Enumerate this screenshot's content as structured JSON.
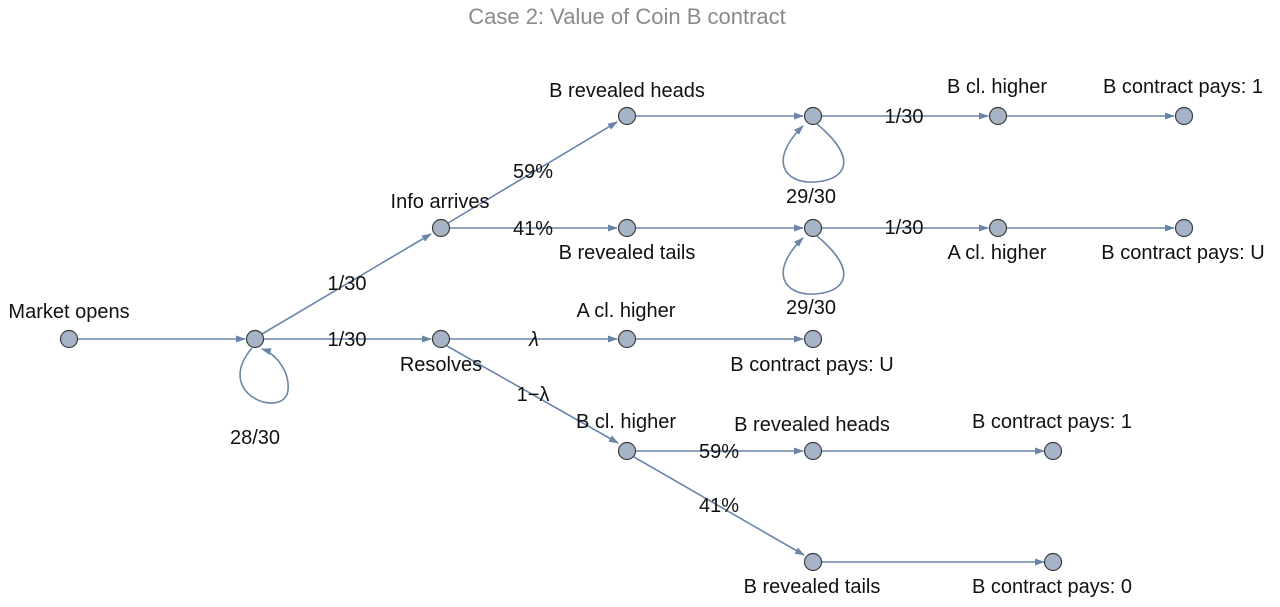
{
  "title": "Case 2: Value of Coin B contract",
  "nodes": {
    "market_opens": "Market opens",
    "info_arrives": "Info arrives",
    "resolves": "Resolves",
    "b_revealed_heads_top": "B revealed heads",
    "b_revealed_tails_top": "B revealed tails",
    "b_cl_higher_top": "B cl. higher",
    "a_cl_higher_top": "A cl. higher",
    "b_pays_1_top": "B contract pays: 1",
    "b_pays_u_top": "B contract pays: U",
    "a_cl_higher_mid": "A cl. higher",
    "b_pays_u_mid": "B contract pays: U",
    "b_cl_higher_bottom": "B cl. higher",
    "b_revealed_heads_bottom": "B revealed heads",
    "b_revealed_tails_bottom": "B revealed tails",
    "b_pays_1_bottom": "B contract pays: 1",
    "b_pays_0_bottom": "B contract pays: 0"
  },
  "edges": {
    "start_self_loop": "28/30",
    "to_info_arrives": "1/30",
    "to_resolves": "1/30",
    "info_heads": "59%",
    "info_tails": "41%",
    "heads_self_loop": "29/30",
    "tails_self_loop": "29/30",
    "heads_close": "1/30",
    "tails_close": "1/30",
    "resolves_lambda": "λ",
    "resolves_one_minus_lambda": "1−λ",
    "bottom_heads": "59%",
    "bottom_tails": "41%"
  },
  "colors": {
    "node_fill": "#a7b4c8",
    "edge": "#6b85a8",
    "title": "#8a8a8a"
  }
}
